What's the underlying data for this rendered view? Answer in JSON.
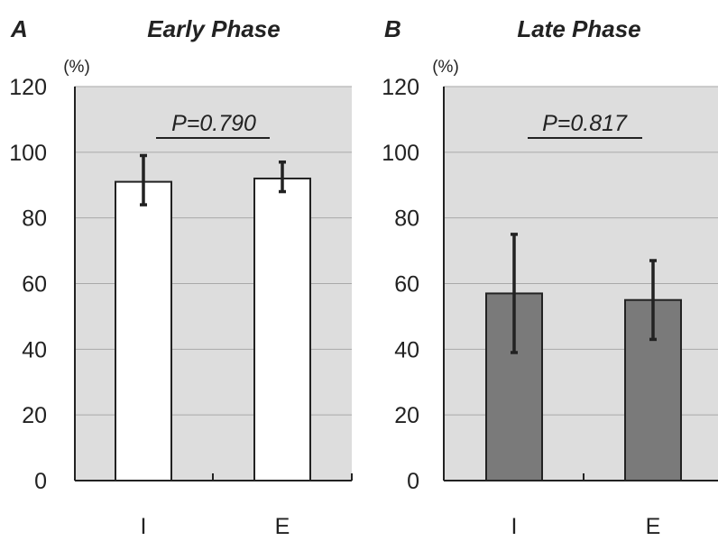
{
  "chart_data": [
    {
      "type": "bar",
      "panel_label": "A",
      "title": "Early Phase",
      "ylabel": "(%)",
      "ylim": [
        0,
        120
      ],
      "yticks": [
        "0",
        "20",
        "40",
        "60",
        "80",
        "100",
        "120"
      ],
      "categories": [
        "I",
        "E"
      ],
      "series": [
        {
          "values": [
            91,
            92
          ],
          "error": [
            [
              84,
              99
            ],
            [
              88,
              97
            ]
          ],
          "color": "#ffffff"
        }
      ],
      "annotation": "P=0.790",
      "grid": true
    },
    {
      "type": "bar",
      "panel_label": "B",
      "title": "Late Phase",
      "ylabel": "(%)",
      "ylim": [
        0,
        120
      ],
      "yticks": [
        "0",
        "20",
        "40",
        "60",
        "80",
        "100",
        "120"
      ],
      "categories": [
        "I",
        "E"
      ],
      "series": [
        {
          "values": [
            57,
            55
          ],
          "error": [
            [
              39,
              75
            ],
            [
              43,
              67
            ]
          ],
          "color": "#7a7a7a"
        }
      ],
      "annotation": "P=0.817",
      "grid": true
    }
  ]
}
